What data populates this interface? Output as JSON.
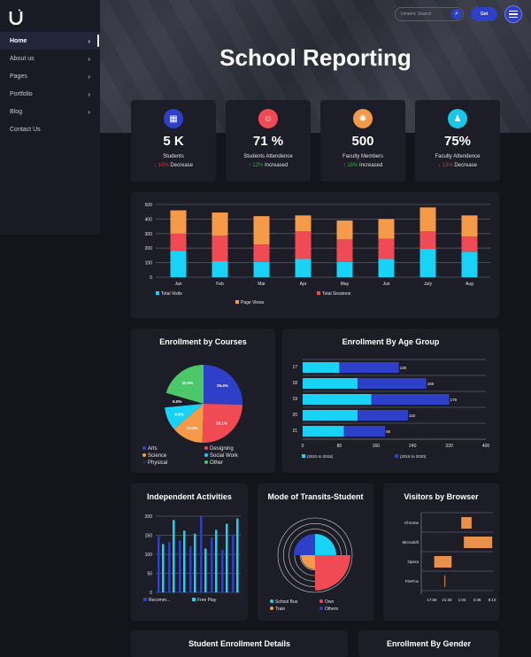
{
  "header": {
    "title": "School Reporting",
    "search_placeholder": "Umetric Search",
    "get_label": "Get"
  },
  "sidebar": {
    "items": [
      {
        "label": "Home",
        "active": true,
        "has_chevron": true
      },
      {
        "label": "About us",
        "has_chevron": true
      },
      {
        "label": "Pages",
        "has_chevron": true
      },
      {
        "label": "Portfolio",
        "has_chevron": true
      },
      {
        "label": "Blog",
        "has_chevron": true
      },
      {
        "label": "Contact Us",
        "has_chevron": false
      }
    ]
  },
  "stats": [
    {
      "icon": "presentation-icon",
      "color": "#2e3fc8",
      "value": "5 K",
      "label": "Students",
      "change": "10%",
      "direction": "down",
      "change_text": "Decrease"
    },
    {
      "icon": "students-icon",
      "color": "#f04a55",
      "value": "71 %",
      "label": "Students Attendence",
      "change": "12%",
      "direction": "up",
      "change_text": "Increased"
    },
    {
      "icon": "faculty-icon",
      "color": "#f2994a",
      "value": "500",
      "label": "Faculty Members",
      "change": "16%",
      "direction": "up",
      "change_text": "Increased"
    },
    {
      "icon": "faculty-attendance-icon",
      "color": "#19c7e8",
      "value": "75%",
      "label": "Faculty Attendence",
      "change": "13%",
      "direction": "down",
      "change_text": "Decrease"
    }
  ],
  "chart_data": [
    {
      "id": "visits",
      "type": "bar",
      "stacked": true,
      "title": "",
      "categories": [
        "Jan",
        "Feb",
        "Mar",
        "Apr",
        "May",
        "Jun",
        "July",
        "Aug"
      ],
      "series": [
        {
          "name": "Total Visits",
          "color": "#19d3f7",
          "values": [
            180,
            110,
            105,
            125,
            105,
            125,
            195,
            175
          ]
        },
        {
          "name": "Total Sessions",
          "color": "#f04a55",
          "values": [
            120,
            175,
            120,
            190,
            155,
            140,
            120,
            105
          ]
        },
        {
          "name": "Page Views",
          "color": "#f59a49",
          "values": [
            160,
            160,
            195,
            110,
            130,
            135,
            165,
            145
          ]
        }
      ],
      "ylim": [
        0,
        500
      ],
      "yticks": [
        0,
        100,
        200,
        300,
        400,
        500
      ],
      "grid": true,
      "legend": "bottom"
    },
    {
      "id": "courses",
      "type": "pie",
      "title": "Enrollment by Courses",
      "slices": [
        {
          "name": "Arts",
          "value": 25.4,
          "label": "25.4%",
          "color": "#2e3fc8"
        },
        {
          "name": "Designing",
          "value": 25.1,
          "label": "25.1%",
          "color": "#f04a55"
        },
        {
          "name": "Science",
          "value": 13.2,
          "label": "13.2%",
          "color": "#f59a49"
        },
        {
          "name": "Social Work",
          "value": 9.8,
          "label": "9.8%",
          "color": "#19d3f7"
        },
        {
          "name": "Physical",
          "value": 6.0,
          "label": "6.0%",
          "color": "#1c1d26"
        },
        {
          "name": "Other",
          "value": 20.5,
          "label": "20.5%",
          "color": "#4cc86a"
        }
      ],
      "legend": "bottom"
    },
    {
      "id": "age",
      "type": "bar",
      "orientation": "horizontal",
      "stacked": true,
      "title": "Enrollment By Age Group",
      "categories": [
        "17",
        "18",
        "19",
        "20",
        "21"
      ],
      "series": [
        {
          "name": "(2010 to 2015)",
          "color": "#19d3f7",
          "values": [
            80,
            120,
            150,
            120,
            90
          ]
        },
        {
          "name": "(2016 to 2020)",
          "color": "#2e3fc8",
          "values": [
            130,
            150,
            170,
            110,
            90
          ]
        }
      ],
      "xlim": [
        0,
        400
      ],
      "xticks": [
        0,
        80,
        160,
        240,
        320,
        400
      ],
      "grid": true,
      "legend": "bottom"
    },
    {
      "id": "activities",
      "type": "bar",
      "title": "Independent Activities",
      "categories": [
        "1",
        "2",
        "3",
        "4",
        "5",
        "6",
        "7",
        "8"
      ],
      "series": [
        {
          "name": "Recomm...",
          "color": "#2e3fc8",
          "values": [
            148,
            132,
            136,
            121,
            200,
            144,
            112,
            152
          ]
        },
        {
          "name": "Free Play",
          "color": "#19d3f7",
          "values": [
            127,
            190,
            162,
            154,
            115,
            164,
            180,
            194
          ]
        }
      ],
      "ylim": [
        0,
        200
      ],
      "yticks": [
        0,
        50,
        100,
        150,
        200
      ],
      "grid": true,
      "legend": "bottom"
    },
    {
      "id": "transit",
      "type": "pie",
      "variant": "polar-area",
      "title": "Mode of Transits-Student",
      "slices": [
        {
          "name": "School Bus",
          "value": 60,
          "color": "#19d3f7"
        },
        {
          "name": "Own",
          "value": 100,
          "color": "#f04a55"
        },
        {
          "name": "Train",
          "value": 40,
          "color": "#f59a49"
        },
        {
          "name": "Others",
          "value": 60,
          "color": "#2e3fc8"
        }
      ],
      "legend": "bottom"
    },
    {
      "id": "browser",
      "type": "bar",
      "orientation": "horizontal",
      "variant": "range",
      "title": "Visitors by Browser",
      "categories": [
        "Chrome",
        "Microdoft",
        "Opera",
        "FireFox"
      ],
      "xticks": [
        "17:56",
        "21:30",
        "1:03",
        "4:36",
        "8:10"
      ],
      "ranges": [
        [
          0.62,
          0.78
        ],
        [
          0.66,
          1.1
        ],
        [
          0.2,
          0.47
        ],
        [
          0.36,
          0.37
        ]
      ],
      "color": "#e8914a",
      "grid": true
    }
  ],
  "bottom_cards": [
    {
      "title": "Student Enrollment Details"
    },
    {
      "title": "Enrollment By Gender"
    }
  ]
}
